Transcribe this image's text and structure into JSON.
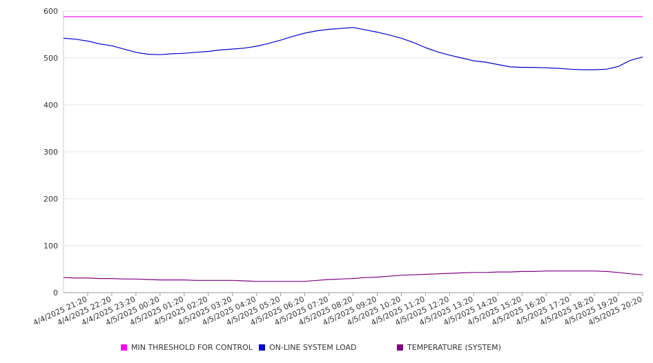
{
  "chart_data": {
    "type": "line",
    "title": "",
    "xlabel": "",
    "ylabel": "",
    "ylim": [
      0,
      600
    ],
    "yticks": [
      0,
      100,
      200,
      300,
      400,
      500,
      600
    ],
    "grid": true,
    "legend_position": "bottom",
    "categories": [
      "4/4/2025 21:20",
      "4/4/2025 22:20",
      "4/4/2025 23:20",
      "4/5/2025 00:20",
      "4/5/2025 01:20",
      "4/5/2025 02:20",
      "4/5/2025 03:20",
      "4/5/2025 04:20",
      "4/5/2025 05:20",
      "4/5/2025 06:20",
      "4/5/2025 07:20",
      "4/5/2025 08:20",
      "4/5/2025 09:20",
      "4/5/2025 10:20",
      "4/5/2025 11:20",
      "4/5/2025 12:20",
      "4/5/2025 13:20",
      "4/5/2025 14:20",
      "4/5/2025 15:20",
      "4/5/2025 16:20",
      "4/5/2025 17:20",
      "4/5/2025 18:20",
      "4/5/2025 19:20",
      "4/5/2025 20:20"
    ],
    "x": [
      0,
      0.5,
      1,
      1.5,
      2,
      2.5,
      3,
      3.5,
      4,
      4.5,
      5,
      5.5,
      6,
      6.5,
      7,
      7.5,
      8,
      8.5,
      9,
      9.5,
      10,
      10.5,
      11,
      11.5,
      12,
      12.5,
      13,
      13.5,
      14,
      14.5,
      15,
      15.5,
      16,
      16.5,
      17,
      17.5,
      18,
      18.5,
      19,
      19.5,
      20,
      20.5,
      21,
      21.5,
      22,
      22.5,
      23,
      23.5,
      24
    ],
    "series": [
      {
        "name": "MIN THRESHOLD FOR CONTROL",
        "color": "#ff00ff",
        "values": [
          588,
          588,
          588,
          588,
          588,
          588,
          588,
          588,
          588,
          588,
          588,
          588,
          588,
          588,
          588,
          588,
          588,
          588,
          588,
          588,
          588,
          588,
          588,
          588,
          588,
          588,
          588,
          588,
          588,
          588,
          588,
          588,
          588,
          588,
          588,
          588,
          588,
          588,
          588,
          588,
          588,
          588,
          588,
          588,
          588,
          588,
          588,
          588,
          588
        ]
      },
      {
        "name": "ON-LINE SYSTEM LOAD",
        "color": "#0000cc",
        "values": [
          542,
          540,
          536,
          530,
          526,
          519,
          512,
          508,
          507,
          509,
          510,
          512,
          514,
          517,
          519,
          521,
          525,
          531,
          538,
          546,
          553,
          558,
          561,
          563,
          565,
          560,
          555,
          549,
          542,
          533,
          522,
          513,
          506,
          500,
          494,
          491,
          486,
          481,
          480,
          480,
          479,
          478,
          476,
          475,
          475,
          476,
          482,
          495,
          502
        ]
      },
      {
        "name": "TEMPERATURE (SYSTEM)",
        "color": "#800080",
        "values": [
          32,
          31,
          31,
          30,
          30,
          29,
          29,
          28,
          27,
          27,
          27,
          26,
          26,
          26,
          26,
          25,
          24,
          24,
          24,
          24,
          24,
          26,
          28,
          29,
          30,
          32,
          33,
          35,
          37,
          38,
          39,
          40,
          41,
          42,
          43,
          43,
          44,
          44,
          45,
          45,
          46,
          46,
          46,
          46,
          46,
          45,
          43,
          40,
          38
        ]
      }
    ]
  }
}
